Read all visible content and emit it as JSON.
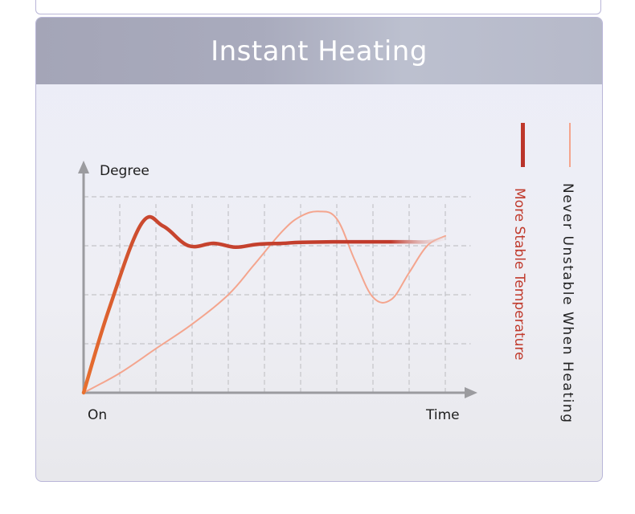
{
  "header": {
    "title": "Instant Heating"
  },
  "chart_data": {
    "type": "line",
    "ylabel": "Degree",
    "x_start_label": "On",
    "xlabel": "Time",
    "grid": true,
    "legend_position": "right",
    "series": [
      {
        "name": "More Stable Temperature",
        "color": "#c0392b",
        "x": [
          0,
          0.7,
          1.6,
          2.2,
          2.9,
          3.6,
          4.2,
          4.8,
          5.5,
          6.0,
          7.0,
          8.0,
          8.5,
          9.0,
          9.5,
          10.0
        ],
        "y": [
          0,
          1.7,
          3.45,
          3.4,
          3.0,
          3.05,
          2.97,
          3.03,
          3.05,
          3.07,
          3.08,
          3.08,
          3.08,
          3.08,
          3.08,
          3.15
        ]
      },
      {
        "name": "Never Unstable When Heating",
        "color": "#f4a58e",
        "x": [
          0,
          1,
          2,
          3,
          4,
          4.7,
          5.5,
          6.0,
          6.5,
          7.0,
          7.5,
          8.0,
          8.5,
          9.0,
          9.5,
          10.0
        ],
        "y": [
          0,
          0.4,
          0.9,
          1.4,
          2.0,
          2.6,
          3.3,
          3.6,
          3.7,
          3.55,
          2.7,
          1.95,
          1.9,
          2.45,
          3.0,
          3.2
        ]
      }
    ]
  }
}
